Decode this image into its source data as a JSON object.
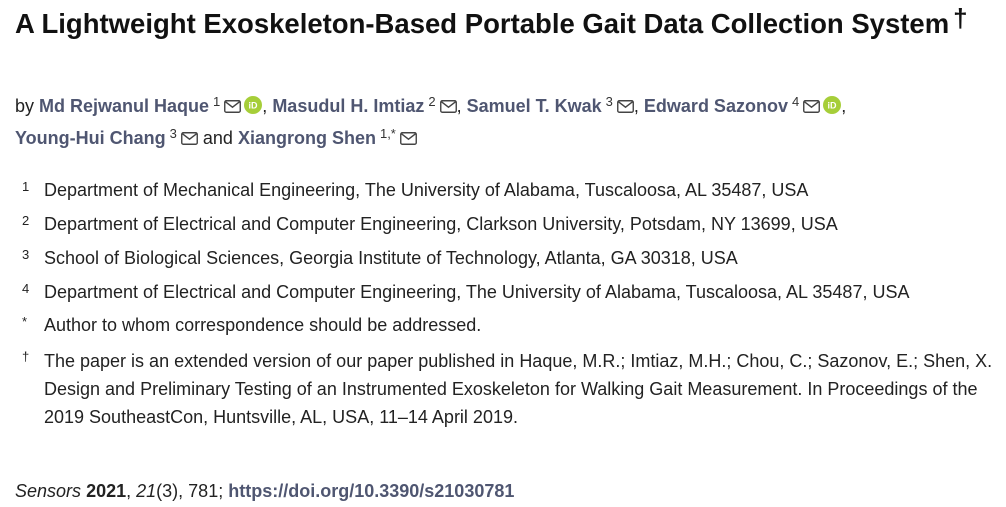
{
  "title": "A Lightweight Exoskeleton-Based Portable Gait Data Collection System",
  "title_mark": "†",
  "authors_prefix": "by",
  "authors": [
    {
      "name": "Md Rejwanul Haque",
      "sup": "1",
      "mail_icon": "mail-icon",
      "orcid_icon": "orcid-icon"
    },
    {
      "name": "Masudul H. Imtiaz",
      "sup": "2",
      "mail_icon": "mail-icon"
    },
    {
      "name": "Samuel T. Kwak",
      "sup": "3",
      "mail_icon": "mail-icon"
    },
    {
      "name": "Edward Sazonov",
      "sup": "4",
      "mail_icon": "mail-icon",
      "orcid_icon": "orcid-icon"
    },
    {
      "name": "Young-Hui Chang",
      "sup": "3",
      "mail_icon": "mail-icon"
    },
    {
      "name": "Xiangrong Shen",
      "sup": "1,*",
      "mail_icon": "mail-icon"
    }
  ],
  "separators": [
    ",",
    ",",
    ",",
    ",",
    "and"
  ],
  "affiliations": [
    {
      "mark": "1",
      "text": "Department of Mechanical Engineering, The University of Alabama, Tuscaloosa, AL 35487, USA"
    },
    {
      "mark": "2",
      "text": "Department of Electrical and Computer Engineering, Clarkson University, Potsdam, NY 13699, USA"
    },
    {
      "mark": "3",
      "text": "School of Biological Sciences, Georgia Institute of Technology, Atlanta, GA 30318, USA"
    },
    {
      "mark": "4",
      "text": "Department of Electrical and Computer Engineering, The University of Alabama, Tuscaloosa, AL 35487, USA"
    },
    {
      "mark": "*",
      "text": "Author to whom correspondence should be addressed."
    },
    {
      "mark": "†",
      "text": "The paper is an extended version of our paper published in Haque, M.R.; Imtiaz, M.H.; Chou, C.; Sazonov, E.; Shen, X. Design and Preliminary Testing of an Instrumented Exoskeleton for Walking Gait Measurement. In Proceedings of the 2019 SoutheastCon, Huntsville, AL, USA, 11–14 April 2019."
    }
  ],
  "citation": {
    "journal": "Sensors",
    "year": "2021",
    "volume": "21",
    "issue": "(3)",
    "page": "781",
    "doi_url": "https://doi.org/10.3390/s21030781"
  },
  "colors": {
    "author_link": "#4f5671",
    "orcid": "#a6ce39"
  }
}
